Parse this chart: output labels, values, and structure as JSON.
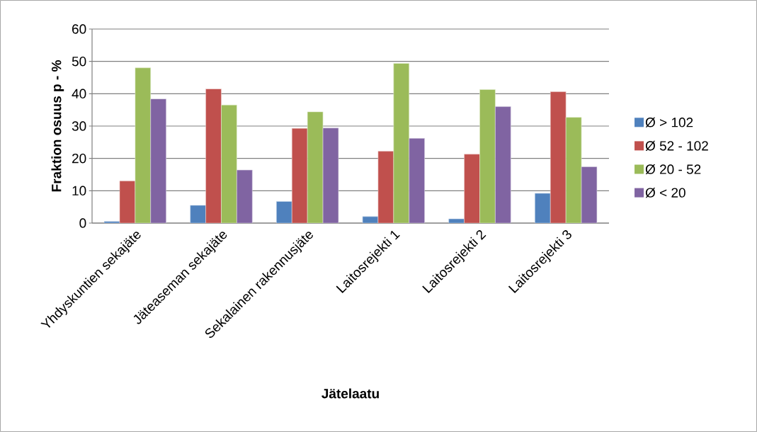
{
  "chart_data": {
    "type": "bar",
    "xlabel": "Jätelaatu",
    "ylabel": "Fraktion osuus p - %",
    "categories": [
      "Yhdyskuntien sekajäte",
      "Jäteaseman sekajäte",
      "Sekalainen rakennusjäte",
      "Laitosrejekti 1",
      "Laitosrejekti 2",
      "Laitosrejekti 3"
    ],
    "series": [
      {
        "name": "Ø > 102",
        "color": "#4f81bd",
        "values": [
          0.5,
          5.5,
          6.7,
          2,
          1.3,
          9.2
        ]
      },
      {
        "name": "Ø 52 - 102",
        "color": "#c0504d",
        "values": [
          13,
          41.5,
          29.3,
          22.2,
          21.3,
          40.6
        ]
      },
      {
        "name": "Ø 20 - 52",
        "color": "#9bbb59",
        "values": [
          48,
          36.5,
          34.4,
          49.4,
          41.3,
          32.7
        ]
      },
      {
        "name": "Ø < 20",
        "color": "#8064a2",
        "values": [
          38.4,
          16.4,
          29.4,
          26.2,
          36,
          17.4
        ]
      }
    ],
    "ylim": [
      0,
      60
    ],
    "yticks": [
      0,
      10,
      20,
      30,
      40,
      50,
      60
    ],
    "grid": "y",
    "legend": "right"
  }
}
